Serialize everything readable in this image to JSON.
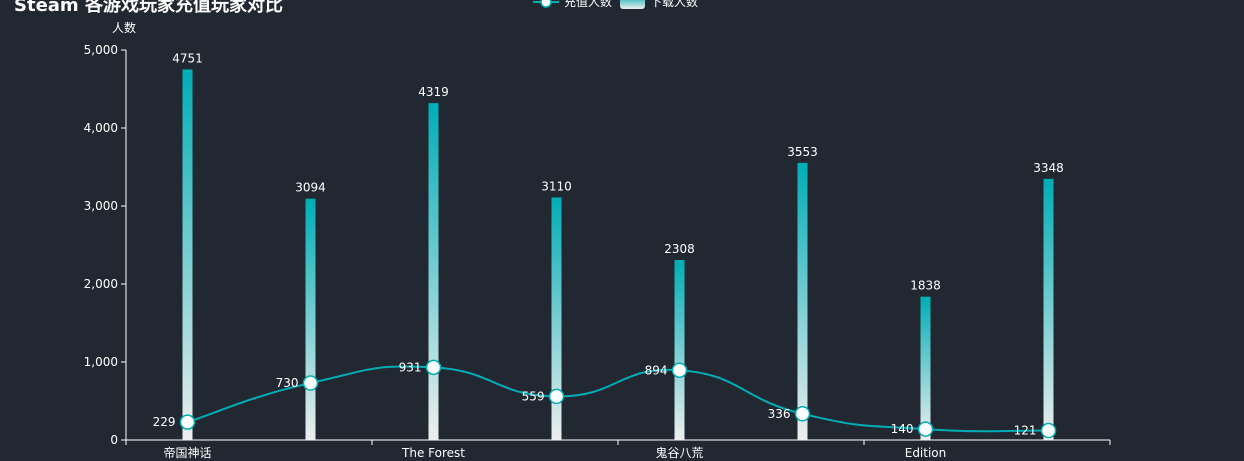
{
  "chart_data": {
    "type": "bar",
    "title": "Steam 各游戏玩家充值玩家对比",
    "ylabel": "人数",
    "ylim": [
      0,
      5000
    ],
    "yticks": [
      "0",
      "1,000",
      "2,000",
      "3,000",
      "4,000",
      "5,000"
    ],
    "categories": [
      "帝国神话",
      "",
      "The Forest",
      "",
      "鬼谷八荒",
      "",
      "Edition",
      ""
    ],
    "legend_position": "top-center",
    "grid": false,
    "series": [
      {
        "name": "下载人数",
        "type": "bar",
        "values": [
          4751,
          3094,
          4319,
          3110,
          2308,
          3553,
          1838,
          3348
        ],
        "color_top": "#00adb5",
        "color_bottom": "#eeeeee"
      },
      {
        "name": "充值人数",
        "type": "line",
        "smooth": true,
        "values": [
          229,
          730,
          931,
          559,
          894,
          336,
          140,
          121
        ],
        "color": "#00adb5"
      }
    ]
  }
}
